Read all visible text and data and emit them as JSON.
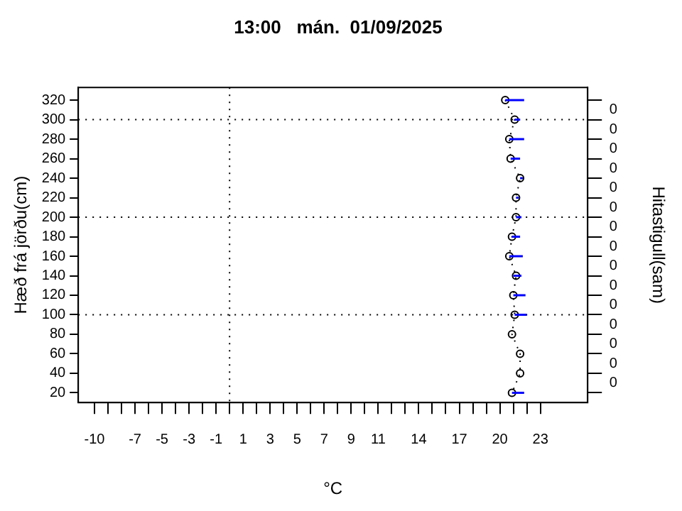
{
  "chart_data": {
    "type": "line",
    "title": "13:00   mán.  01/09/2025",
    "xlabel": "°C",
    "ylabel": "Hæð frá jörðu(cm)",
    "y2label": "Hitastigull(sam)",
    "series": [
      {
        "color": "#000000",
        "x": [
          20.4,
          21.1,
          20.7,
          20.8,
          21.5,
          21.2,
          21.2,
          20.9,
          20.7,
          21.2,
          21.0,
          21.1,
          20.9,
          21.5,
          21.5,
          20.9
        ],
        "values": [
          320,
          300,
          280,
          260,
          240,
          220,
          200,
          180,
          160,
          140,
          120,
          100,
          80,
          60,
          40,
          20
        ],
        "xerrors": [
          [
            20.4,
            21.8
          ],
          [
            21.1,
            21.5
          ],
          [
            20.7,
            21.8
          ],
          [
            20.8,
            21.5
          ],
          [
            21.5,
            21.7
          ],
          [
            21.2,
            21.4
          ],
          [
            21.2,
            21.6
          ],
          [
            20.9,
            21.5
          ],
          [
            20.7,
            21.7
          ],
          [
            21.0,
            21.6
          ],
          [
            21.0,
            21.9
          ],
          [
            21.1,
            22.0
          ],
          null,
          null,
          null,
          [
            20.9,
            21.8
          ]
        ]
      }
    ],
    "marker": "circle",
    "line_style": "dotted",
    "grid": false,
    "legend": false,
    "xlim": [
      -11.2,
      26.5
    ],
    "xticks": [
      -10,
      {
        "value": -9,
        "label": null
      },
      {
        "value": -8,
        "label": null
      },
      -7,
      {
        "value": -6,
        "label": null
      },
      -5,
      {
        "value": -4,
        "label": null
      },
      -3,
      {
        "value": -2,
        "label": null
      },
      -1,
      {
        "value": 0,
        "label": null
      },
      1,
      {
        "value": 2,
        "label": null
      },
      3,
      {
        "value": 4,
        "label": null
      },
      5,
      {
        "value": 6,
        "label": null
      },
      7,
      {
        "value": 8,
        "label": null
      },
      9,
      {
        "value": 10,
        "label": null
      },
      11,
      {
        "value": 12,
        "label": null
      },
      {
        "value": 13,
        "label": null
      },
      14,
      {
        "value": 15,
        "label": null
      },
      {
        "value": 16,
        "label": null
      },
      17,
      {
        "value": 18,
        "label": null
      },
      {
        "value": 19,
        "label": null
      },
      20,
      {
        "value": 21,
        "label": null
      },
      {
        "value": 22,
        "label": null
      },
      23
    ],
    "ylim": [
      10,
      333
    ],
    "yticks": [
      20,
      40,
      60,
      80,
      100,
      120,
      140,
      160,
      180,
      200,
      220,
      240,
      260,
      280,
      300,
      320
    ],
    "annotations": [
      "0",
      "0",
      "0",
      "0",
      "0",
      "0",
      "0",
      "0",
      "0",
      "0",
      "0",
      "0",
      "0",
      "0",
      "0"
    ],
    "ref_lines": [
      {
        "axis": "x",
        "value": 0,
        "line_style": "dotted"
      },
      {
        "axis": "y",
        "value": 100,
        "line_style": "dotted"
      },
      {
        "axis": "y",
        "value": 200,
        "line_style": "dotted"
      },
      {
        "axis": "y",
        "value": 300,
        "line_style": "dotted"
      }
    ]
  }
}
